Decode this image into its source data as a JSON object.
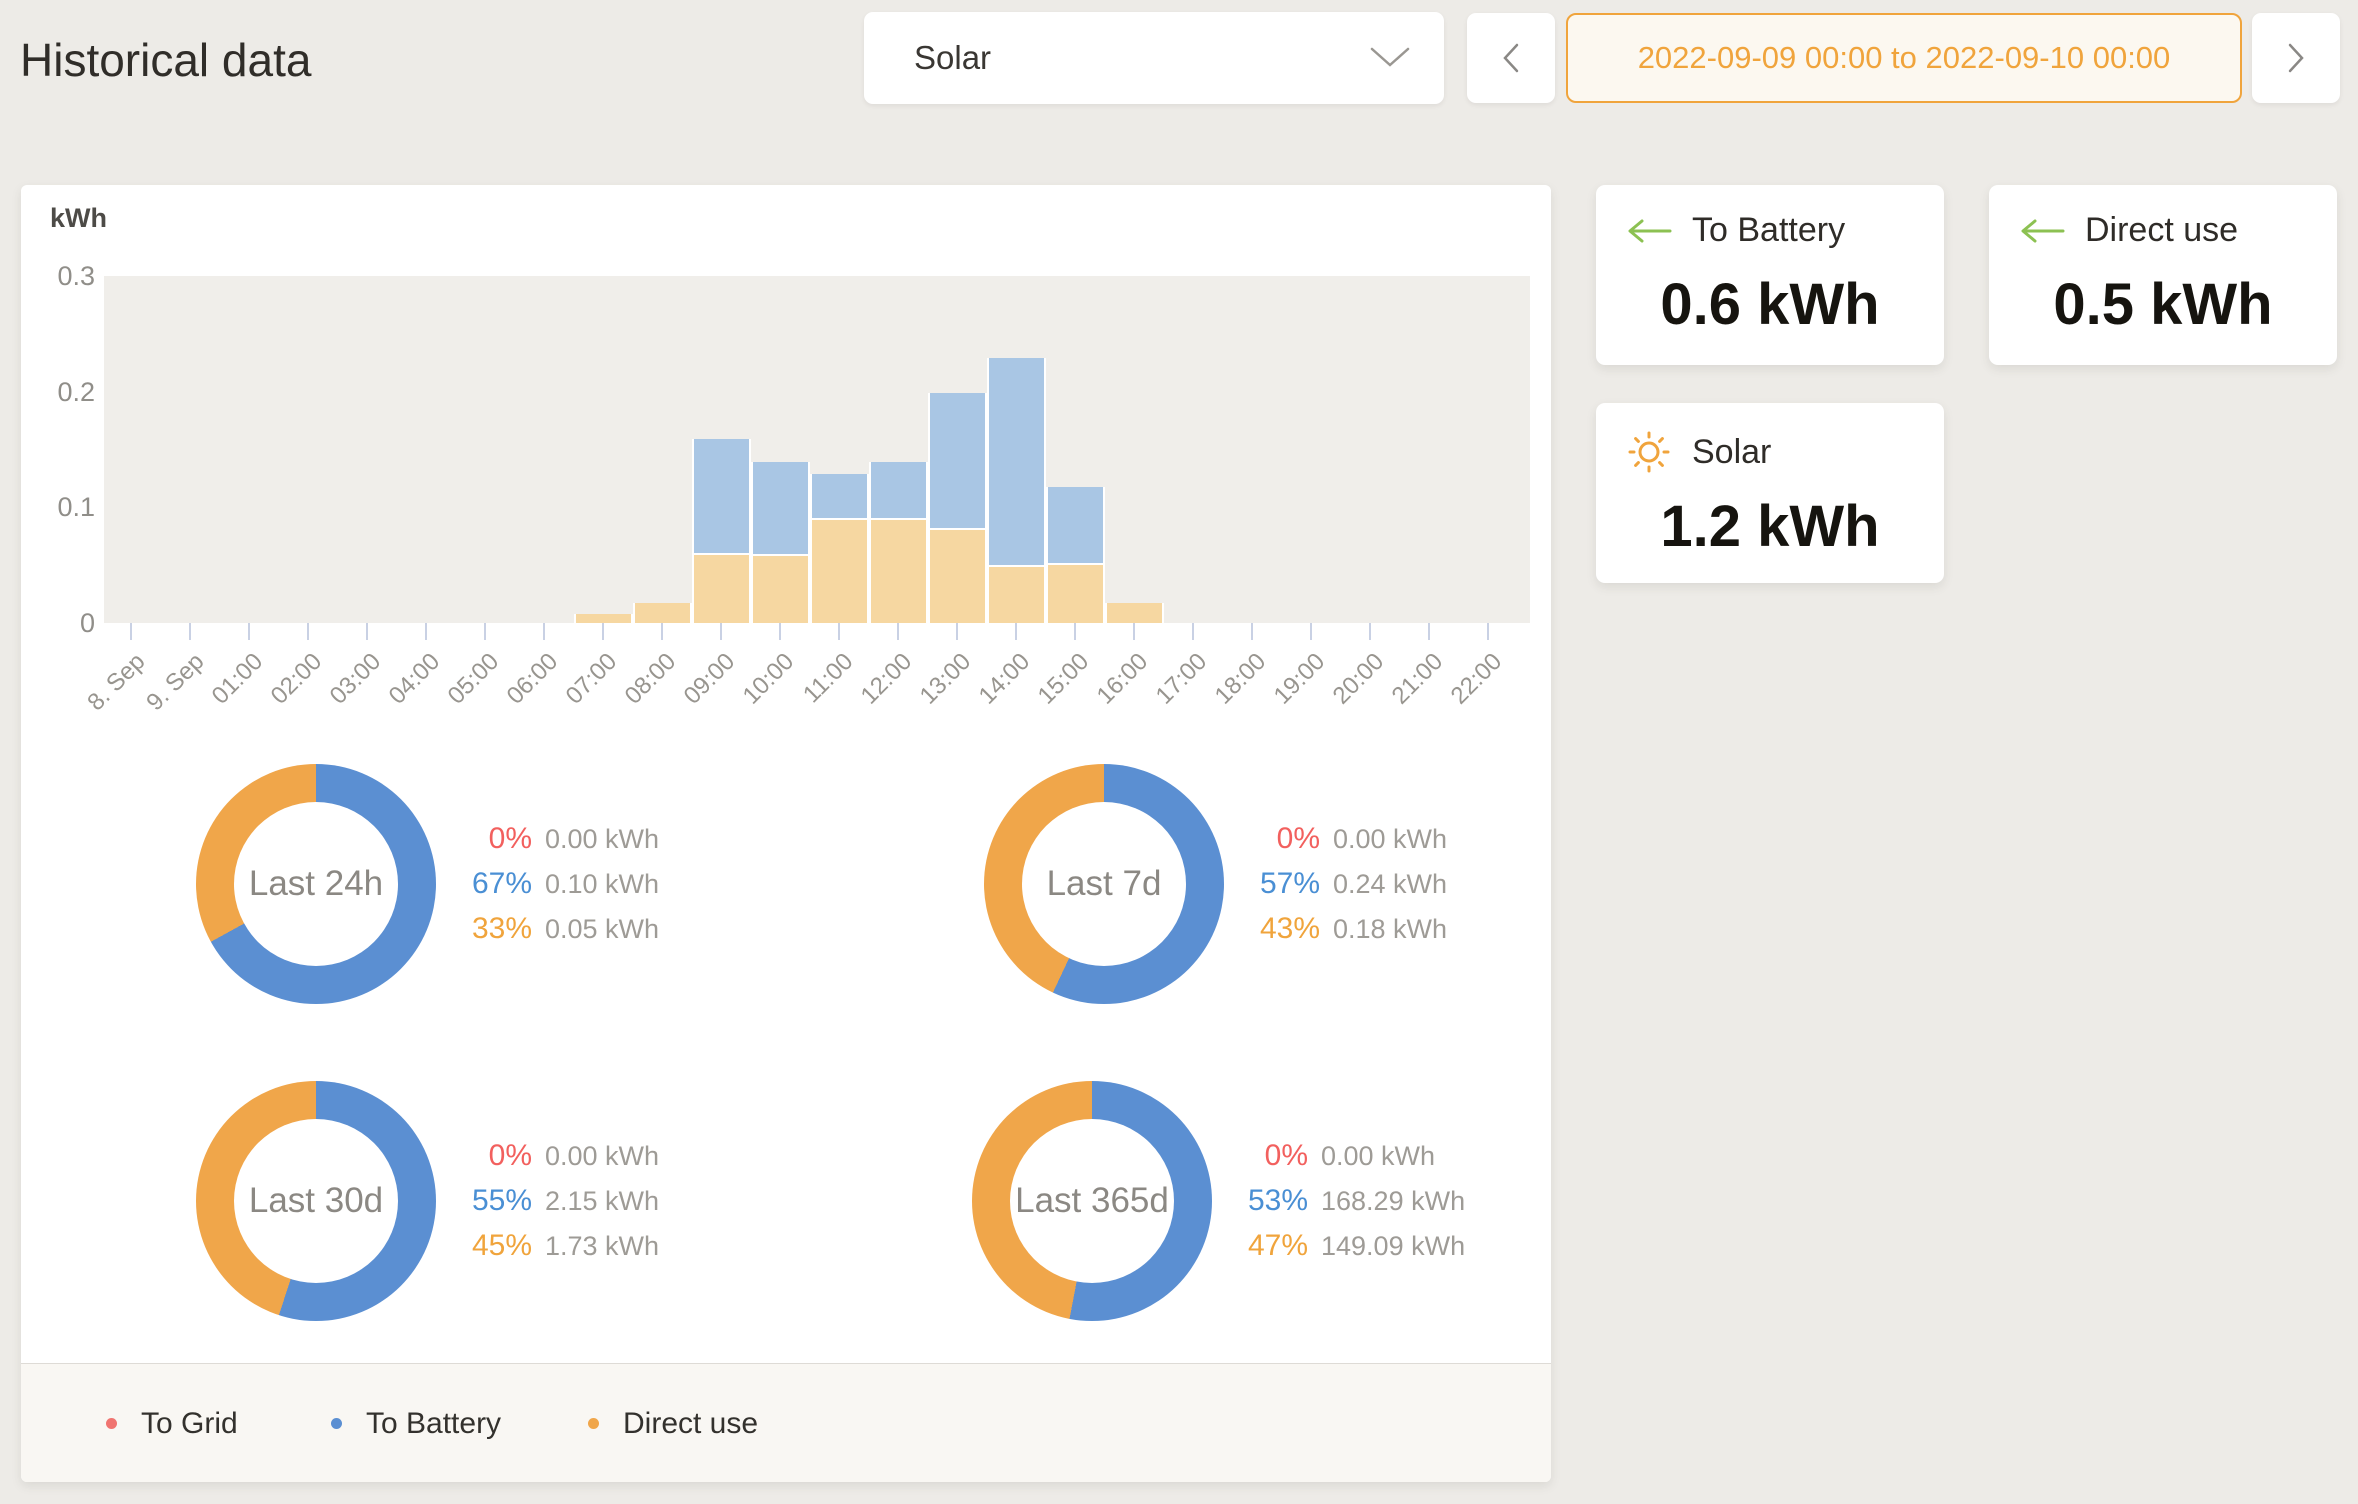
{
  "header": {
    "title": "Historical data",
    "meter_select": {
      "value": "Solar"
    },
    "date_range": "2022-09-09 00:00 to 2022-09-10 00:00"
  },
  "colors": {
    "accent_orange": "#f0a43c",
    "green_arrow": "#8cc152",
    "bar_direct": "#f6d7a1",
    "bar_battery": "#a9c6e4",
    "donut_battery": "#5b8fd2",
    "donut_direct": "#f0a64a",
    "to_grid_red": "#f07470",
    "pct_red": "#f2605e",
    "pct_blue": "#4a8fd4",
    "pct_orange": "#f0a43c",
    "plot_bg": "#f0eeea"
  },
  "chart_data": {
    "type": "bar",
    "stacked": true,
    "unit": "kWh",
    "ylabel": "kWh",
    "ylim": [
      0,
      0.3
    ],
    "yticks": [
      0.3,
      0.2,
      0.1,
      0
    ],
    "grid": false,
    "legend_position": "bottom",
    "categories": [
      "8. Sep",
      "9. Sep",
      "01:00",
      "02:00",
      "03:00",
      "04:00",
      "05:00",
      "06:00",
      "07:00",
      "08:00",
      "09:00",
      "10:00",
      "11:00",
      "12:00",
      "13:00",
      "14:00",
      "15:00",
      "16:00",
      "17:00",
      "18:00",
      "19:00",
      "20:00",
      "21:00",
      "22:00"
    ],
    "series": [
      {
        "name": "To Grid",
        "color": "#f07470",
        "values": [
          0,
          0,
          0,
          0,
          0,
          0,
          0,
          0,
          0,
          0,
          0,
          0,
          0,
          0,
          0,
          0,
          0,
          0,
          0,
          0,
          0,
          0,
          0,
          0
        ]
      },
      {
        "name": "Direct use",
        "color": "#f6d7a1",
        "values": [
          0,
          0,
          0,
          0,
          0,
          0,
          0,
          0,
          0.008,
          0.017,
          0.059,
          0.058,
          0.089,
          0.089,
          0.08,
          0.048,
          0.05,
          0.017,
          0,
          0,
          0,
          0,
          0,
          0
        ]
      },
      {
        "name": "To Battery",
        "color": "#a9c6e4",
        "values": [
          0,
          0,
          0,
          0,
          0,
          0,
          0,
          0,
          0,
          0,
          0.1,
          0.081,
          0.04,
          0.05,
          0.119,
          0.181,
          0.068,
          0,
          0,
          0,
          0,
          0,
          0,
          0
        ]
      }
    ]
  },
  "donuts": [
    {
      "label": "Last 24h",
      "rows": [
        {
          "name": "To Grid",
          "pct": 0,
          "value": "0.00 kWh"
        },
        {
          "name": "To Battery",
          "pct": 67,
          "value": "0.10 kWh"
        },
        {
          "name": "Direct use",
          "pct": 33,
          "value": "0.05 kWh"
        }
      ]
    },
    {
      "label": "Last 7d",
      "rows": [
        {
          "name": "To Grid",
          "pct": 0,
          "value": "0.00 kWh"
        },
        {
          "name": "To Battery",
          "pct": 57,
          "value": "0.24 kWh"
        },
        {
          "name": "Direct use",
          "pct": 43,
          "value": "0.18 kWh"
        }
      ]
    },
    {
      "label": "Last 30d",
      "rows": [
        {
          "name": "To Grid",
          "pct": 0,
          "value": "0.00 kWh"
        },
        {
          "name": "To Battery",
          "pct": 55,
          "value": "2.15 kWh"
        },
        {
          "name": "Direct use",
          "pct": 45,
          "value": "1.73 kWh"
        }
      ]
    },
    {
      "label": "Last 365d",
      "rows": [
        {
          "name": "To Grid",
          "pct": 0,
          "value": "0.00 kWh"
        },
        {
          "name": "To Battery",
          "pct": 53,
          "value": "168.29 kWh"
        },
        {
          "name": "Direct use",
          "pct": 47,
          "value": "149.09 kWh"
        }
      ]
    }
  ],
  "bottom_legend": [
    {
      "label": "To Grid",
      "color": "#f07470"
    },
    {
      "label": "To Battery",
      "color": "#5b8fd2"
    },
    {
      "label": "Direct use",
      "color": "#f0a64a"
    }
  ],
  "cards": [
    {
      "label": "To Battery",
      "value": "0.6 kWh",
      "icon": "arrow-left"
    },
    {
      "label": "Direct use",
      "value": "0.5 kWh",
      "icon": "arrow-left"
    },
    {
      "label": "Solar",
      "value": "1.2 kWh",
      "icon": "sun"
    }
  ]
}
